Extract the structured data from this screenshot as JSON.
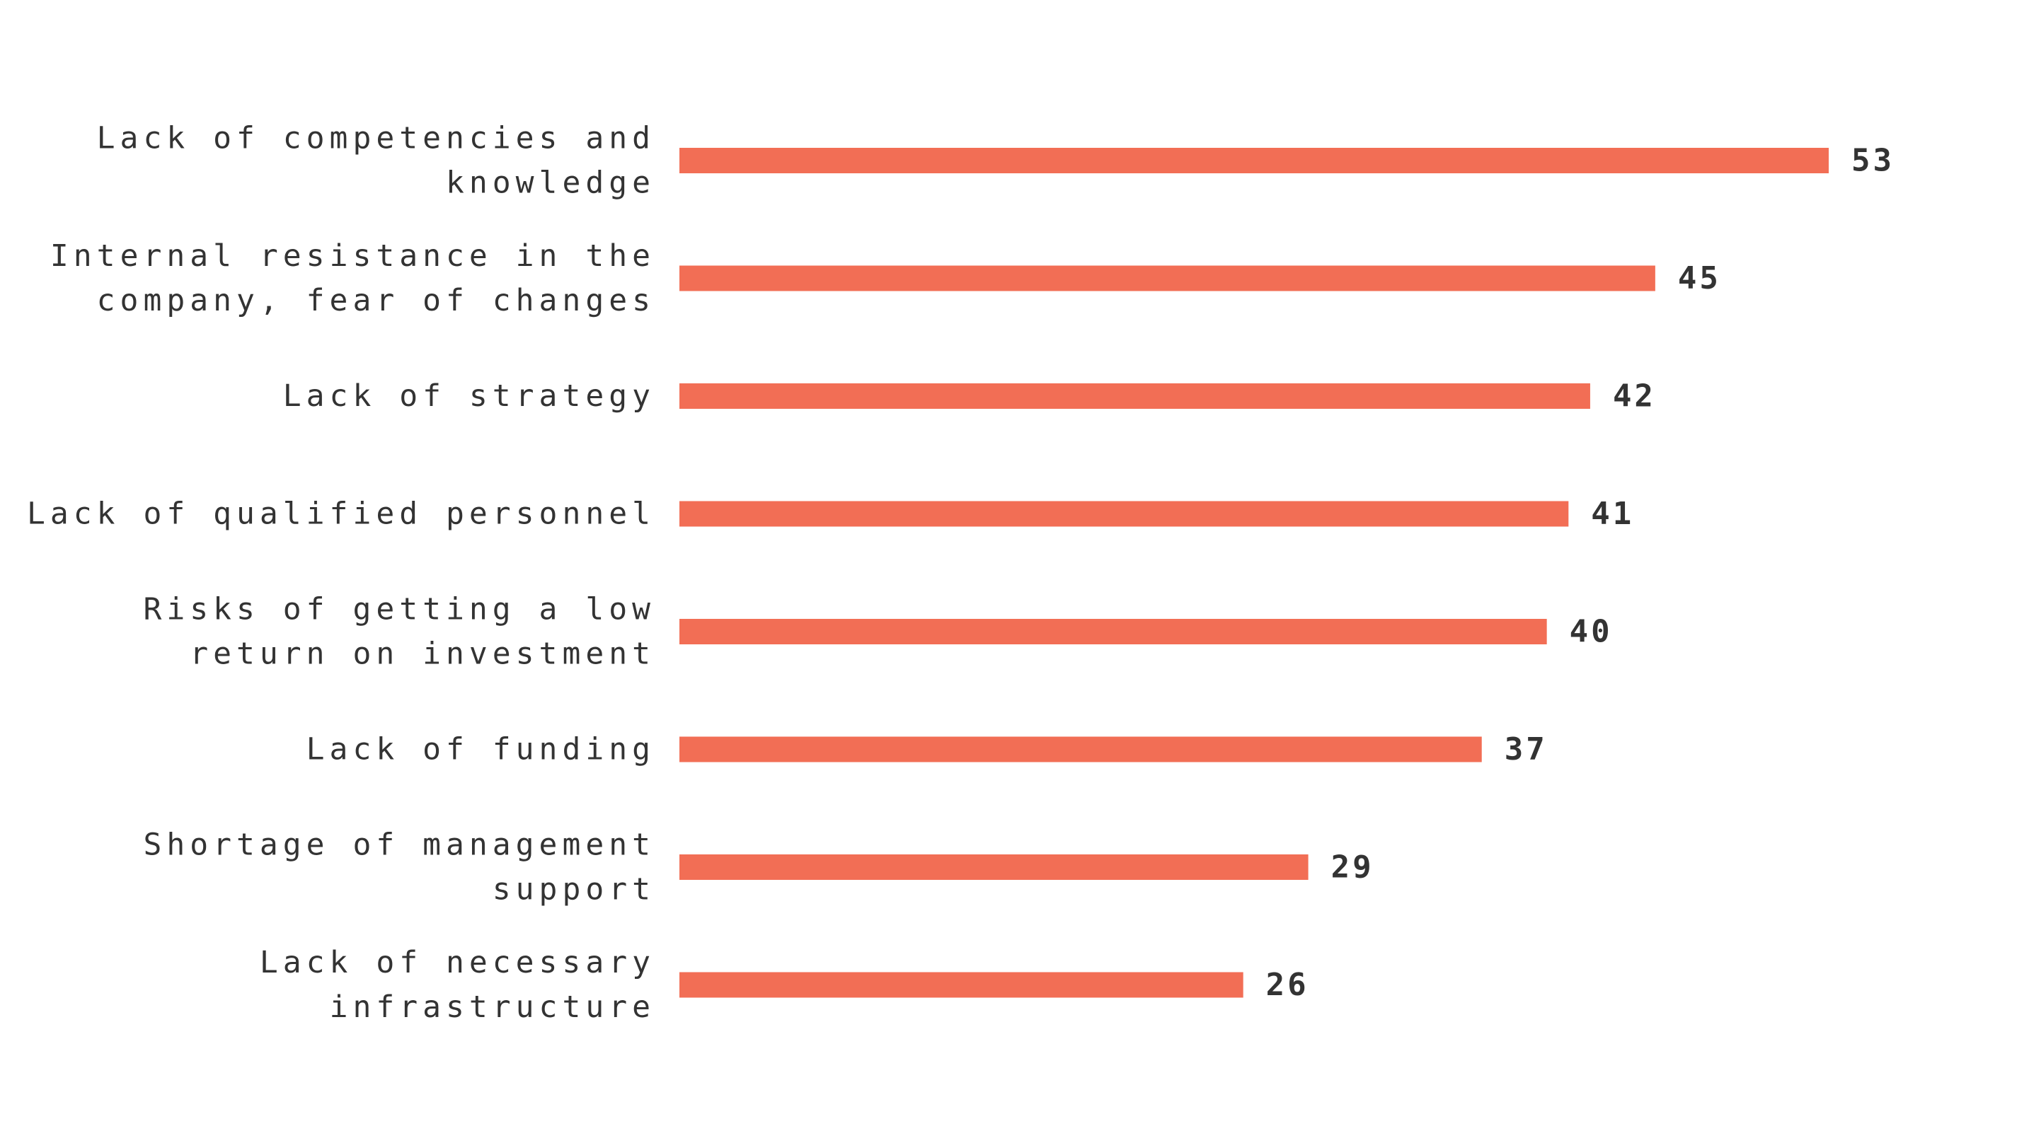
{
  "chart_data": {
    "type": "bar",
    "orientation": "horizontal",
    "categories": [
      [
        "Lack of competencies and",
        "knowledge"
      ],
      [
        "Internal resistance in the",
        "company, fear of changes"
      ],
      [
        "Lack of strategy"
      ],
      [
        "Lack of qualified personnel"
      ],
      [
        "Risks of getting a low",
        "return on investment"
      ],
      [
        "Lack of funding"
      ],
      [
        "Shortage of management",
        "support"
      ],
      [
        "Lack of necessary",
        "infrastructure"
      ]
    ],
    "values": [
      53,
      45,
      42,
      41,
      40,
      37,
      29,
      26
    ],
    "xlim": [
      0,
      53
    ],
    "grid": false,
    "legend": "none",
    "bar_color": "#f26e55",
    "text_color": "#333333"
  }
}
